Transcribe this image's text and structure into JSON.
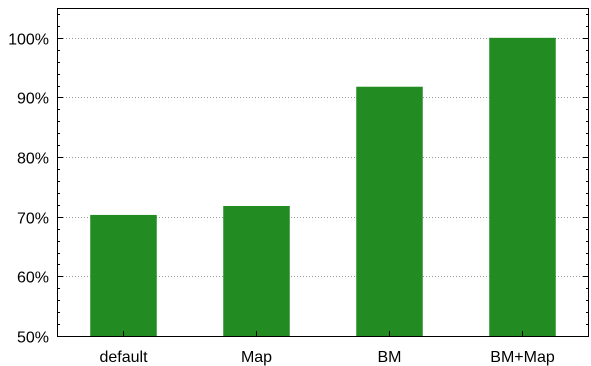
{
  "chart_data": {
    "type": "bar",
    "categories": [
      "default",
      "Map",
      "BM",
      "BM+Map"
    ],
    "values": [
      70.3,
      71.8,
      91.8,
      100
    ],
    "title": "",
    "xlabel": "",
    "ylabel": "",
    "ylim": [
      50,
      105
    ],
    "yticks": [
      50,
      60,
      70,
      80,
      90,
      100
    ],
    "ytick_labels": [
      "50%",
      "60%",
      "70%",
      "80%",
      "90%",
      "100%"
    ],
    "grid": true,
    "bar_color": "#228b22"
  }
}
